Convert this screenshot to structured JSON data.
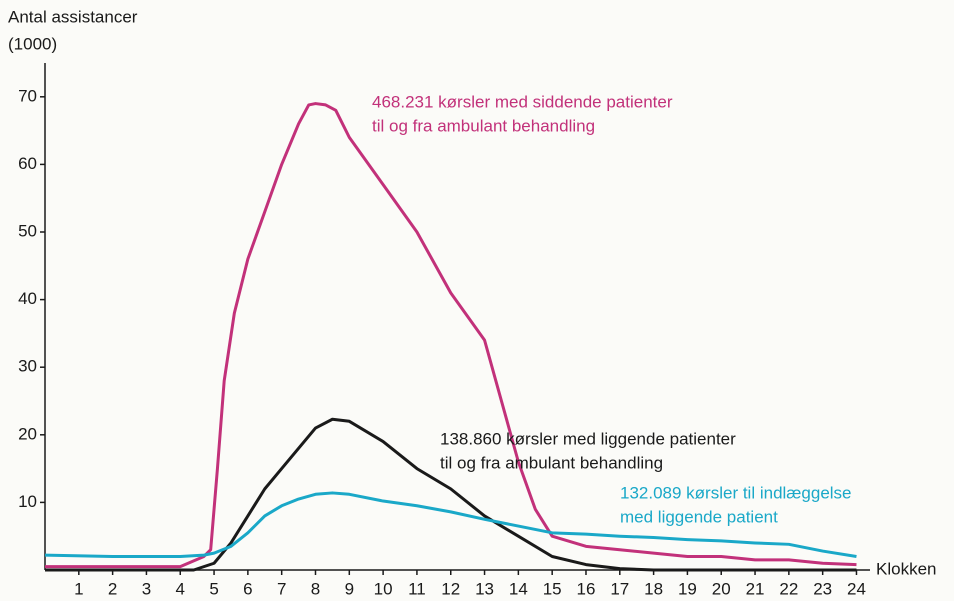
{
  "chart_data": {
    "type": "line",
    "ylabel": [
      "Antal assistancer",
      "(1000)"
    ],
    "xlabel": "Klokken",
    "xlim": [
      0,
      24.4
    ],
    "ylim": [
      0,
      75
    ],
    "xticks": [
      1,
      2,
      3,
      4,
      5,
      6,
      7,
      8,
      9,
      10,
      11,
      12,
      13,
      14,
      15,
      16,
      17,
      18,
      19,
      20,
      21,
      22,
      23,
      24
    ],
    "yticks": [
      10,
      20,
      30,
      40,
      50,
      60,
      70
    ],
    "series": [
      {
        "name": "468.231 kørsler med siddende patienter til og fra ambulant behandling",
        "color": "#c2317a",
        "annotation": [
          "468.231 kørsler med siddende patienter",
          "til og fra ambulant behandling"
        ],
        "x": [
          0,
          4,
          4.7,
          4.9,
          5.1,
          5.3,
          5.6,
          6,
          6.5,
          7,
          7.5,
          7.8,
          8,
          8.3,
          8.6,
          9,
          10,
          11,
          12,
          13,
          13.5,
          14,
          14.5,
          15,
          16,
          17,
          18,
          19,
          20,
          21,
          22,
          23,
          24
        ],
        "values": [
          0.5,
          0.5,
          2,
          3,
          15,
          28,
          38,
          46,
          53,
          60,
          66,
          68.8,
          69,
          68.8,
          68,
          64,
          57,
          50,
          41,
          34,
          25,
          16,
          9,
          5,
          3.5,
          3,
          2.5,
          2,
          2,
          1.5,
          1.5,
          1,
          0.8
        ]
      },
      {
        "name": "138.860 kørsler med liggende patienter til og fra ambulant behandling",
        "color": "#1a1a1a",
        "annotation": [
          "138.860 kørsler med liggende patienter",
          "til og fra ambulant behandling"
        ],
        "x": [
          0,
          4.4,
          5,
          5.5,
          6,
          6.5,
          7,
          7.5,
          8,
          8.5,
          9,
          10,
          11,
          12,
          13,
          14,
          15,
          16,
          17,
          18,
          24
        ],
        "values": [
          0,
          0,
          1,
          4,
          8,
          12,
          15,
          18,
          21,
          22.3,
          22,
          19,
          15,
          12,
          8,
          5,
          2,
          0.8,
          0.2,
          0,
          0
        ]
      },
      {
        "name": "132.089 kørsler til indlæggelse med liggende patient",
        "color": "#1aa8c8",
        "annotation": [
          "132.089 kørsler til indlæggelse",
          "med liggende patient"
        ],
        "x": [
          0,
          2,
          4,
          4.7,
          5,
          5.5,
          6,
          6.5,
          7,
          7.5,
          8,
          8.5,
          9,
          10,
          11,
          12,
          13,
          14,
          15,
          16,
          17,
          18,
          19,
          20,
          21,
          22,
          23,
          24
        ],
        "values": [
          2.2,
          2,
          2,
          2.2,
          2.5,
          3.5,
          5.5,
          8,
          9.5,
          10.5,
          11.2,
          11.4,
          11.2,
          10.2,
          9.5,
          8.6,
          7.5,
          6.5,
          5.5,
          5.3,
          5,
          4.8,
          4.5,
          4.3,
          4,
          3.8,
          2.8,
          2
        ]
      }
    ]
  }
}
